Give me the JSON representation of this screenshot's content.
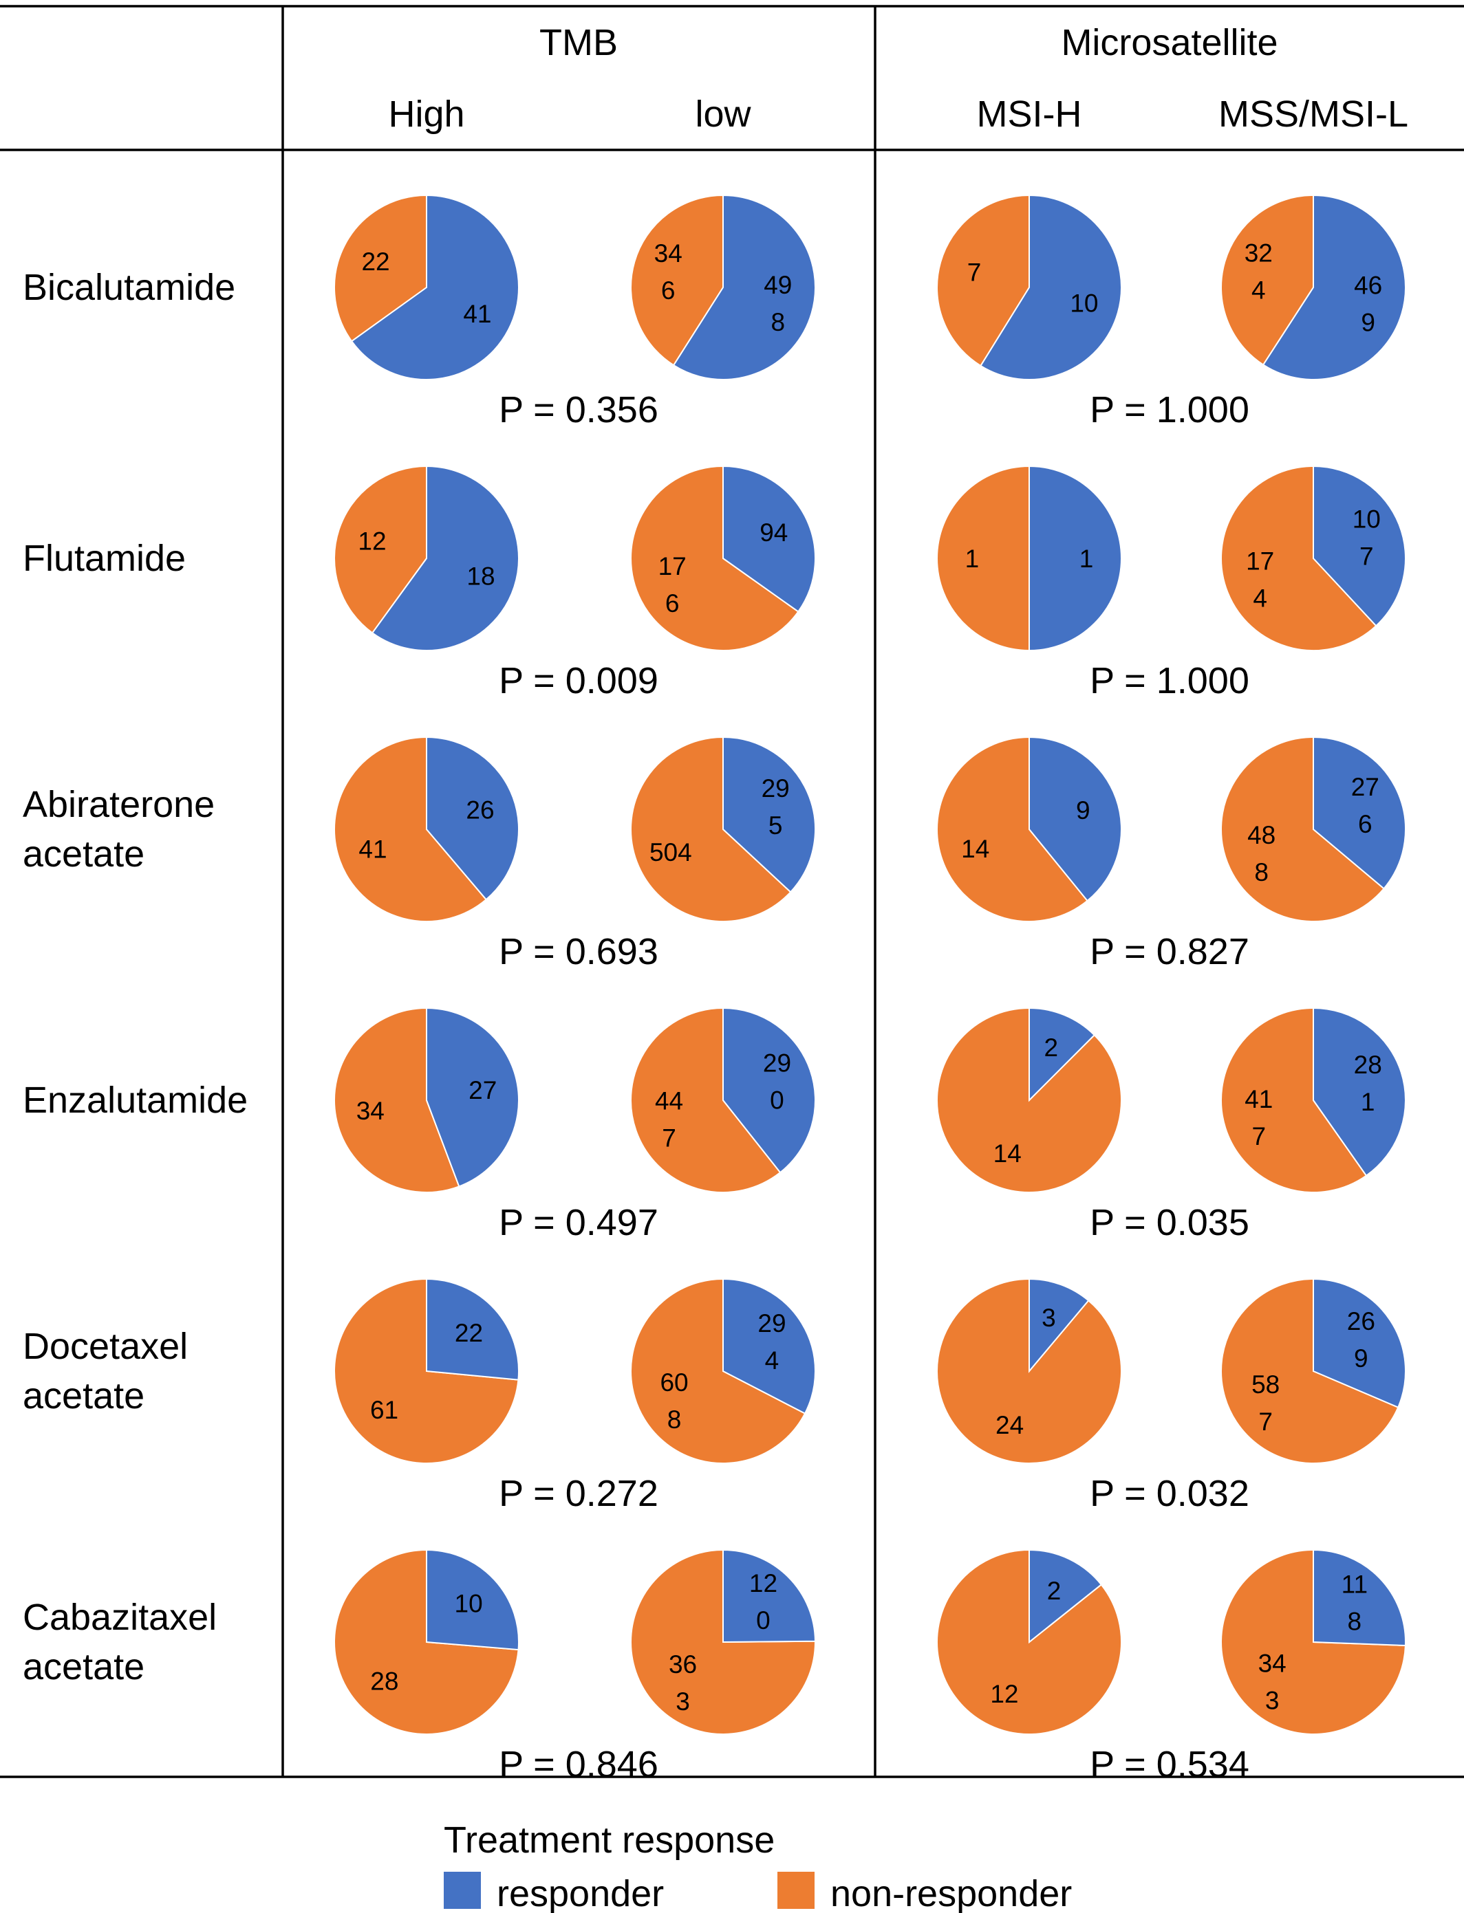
{
  "chart_data": {
    "type": "pie",
    "header": {
      "groups": [
        {
          "label": "TMB",
          "columns": [
            "High",
            "low"
          ]
        },
        {
          "label": "Microsatellite",
          "columns": [
            "MSI-H",
            "MSS/MSI-L"
          ]
        }
      ]
    },
    "colors": {
      "responder": "#4472C4",
      "non_responder": "#ED7D31"
    },
    "rows": [
      {
        "drug": [
          "Bicalutamide"
        ],
        "p_values": [
          "P = 0.356",
          "P = 1.000"
        ],
        "pies": [
          {
            "responder": 41,
            "non_responder": 22,
            "responder_label": [
              "41"
            ],
            "non_responder_label": [
              "22"
            ]
          },
          {
            "responder": 498,
            "non_responder": 346,
            "responder_label": [
              "49",
              "8"
            ],
            "non_responder_label": [
              "34",
              "6"
            ]
          },
          {
            "responder": 10,
            "non_responder": 7,
            "responder_label": [
              "10"
            ],
            "non_responder_label": [
              "7"
            ]
          },
          {
            "responder": 469,
            "non_responder": 324,
            "responder_label": [
              "46",
              "9"
            ],
            "non_responder_label": [
              "32",
              "4"
            ]
          }
        ]
      },
      {
        "drug": [
          "Flutamide"
        ],
        "p_values": [
          "P = 0.009",
          "P = 1.000"
        ],
        "pies": [
          {
            "responder": 18,
            "non_responder": 12,
            "responder_label": [
              "18"
            ],
            "non_responder_label": [
              "12"
            ]
          },
          {
            "responder": 94,
            "non_responder": 176,
            "responder_label": [
              "94"
            ],
            "non_responder_label": [
              "17",
              "6"
            ]
          },
          {
            "responder": 1,
            "non_responder": 1,
            "responder_label": [
              "1"
            ],
            "non_responder_label": [
              "1"
            ]
          },
          {
            "responder": 107,
            "non_responder": 174,
            "responder_label": [
              "10",
              "7"
            ],
            "non_responder_label": [
              "17",
              "4"
            ]
          }
        ]
      },
      {
        "drug": [
          "Abiraterone",
          "acetate"
        ],
        "p_values": [
          "P = 0.693",
          "P = 0.827"
        ],
        "pies": [
          {
            "responder": 26,
            "non_responder": 41,
            "responder_label": [
              "26"
            ],
            "non_responder_label": [
              "41"
            ]
          },
          {
            "responder": 295,
            "non_responder": 504,
            "responder_label": [
              "29",
              "5"
            ],
            "non_responder_label": [
              "504"
            ]
          },
          {
            "responder": 9,
            "non_responder": 14,
            "responder_label": [
              "9"
            ],
            "non_responder_label": [
              "14"
            ]
          },
          {
            "responder": 276,
            "non_responder": 488,
            "responder_label": [
              "27",
              "6"
            ],
            "non_responder_label": [
              "48",
              "8"
            ]
          }
        ]
      },
      {
        "drug": [
          "Enzalutamide"
        ],
        "p_values": [
          "P = 0.497",
          "P = 0.035"
        ],
        "pies": [
          {
            "responder": 27,
            "non_responder": 34,
            "responder_label": [
              "27"
            ],
            "non_responder_label": [
              "34"
            ]
          },
          {
            "responder": 290,
            "non_responder": 447,
            "responder_label": [
              "29",
              "0"
            ],
            "non_responder_label": [
              "44",
              "7"
            ]
          },
          {
            "responder": 2,
            "non_responder": 14,
            "responder_label": [
              "2"
            ],
            "non_responder_label": [
              "14"
            ]
          },
          {
            "responder": 281,
            "non_responder": 417,
            "responder_label": [
              "28",
              "1"
            ],
            "non_responder_label": [
              "41",
              "7"
            ]
          }
        ]
      },
      {
        "drug": [
          "Docetaxel",
          "acetate"
        ],
        "p_values": [
          "P = 0.272",
          "P = 0.032"
        ],
        "pies": [
          {
            "responder": 22,
            "non_responder": 61,
            "responder_label": [
              "22"
            ],
            "non_responder_label": [
              "61"
            ]
          },
          {
            "responder": 294,
            "non_responder": 608,
            "responder_label": [
              "29",
              "4"
            ],
            "non_responder_label": [
              "60",
              "8"
            ]
          },
          {
            "responder": 3,
            "non_responder": 24,
            "responder_label": [
              "3"
            ],
            "non_responder_label": [
              "24"
            ]
          },
          {
            "responder": 269,
            "non_responder": 587,
            "responder_label": [
              "26",
              "9"
            ],
            "non_responder_label": [
              "58",
              "7"
            ]
          }
        ]
      },
      {
        "drug": [
          "Cabazitaxel",
          "acetate"
        ],
        "p_values": [
          "P = 0.846",
          "P = 0.534"
        ],
        "pies": [
          {
            "responder": 10,
            "non_responder": 28,
            "responder_label": [
              "10"
            ],
            "non_responder_label": [
              "28"
            ]
          },
          {
            "responder": 120,
            "non_responder": 363,
            "responder_label": [
              "12",
              "0"
            ],
            "non_responder_label": [
              "36",
              "3"
            ]
          },
          {
            "responder": 2,
            "non_responder": 12,
            "responder_label": [
              "2"
            ],
            "non_responder_label": [
              "12"
            ]
          },
          {
            "responder": 118,
            "non_responder": 343,
            "responder_label": [
              "11",
              "8"
            ],
            "non_responder_label": [
              "34",
              "3"
            ]
          }
        ]
      }
    ],
    "legend": {
      "title": "Treatment response",
      "position": "bottom",
      "items": [
        {
          "label": "responder",
          "color": "#4472C4"
        },
        {
          "label": "non-responder",
          "color": "#ED7D31"
        }
      ]
    }
  }
}
